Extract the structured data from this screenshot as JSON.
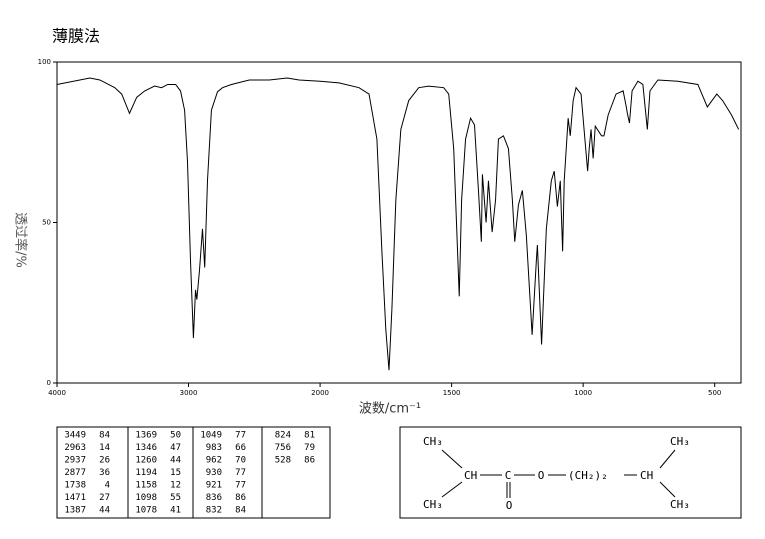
{
  "chart_data": {
    "type": "line",
    "title": "薄膜法",
    "x_label": "波数/cm⁻¹",
    "y_label": "透过率/%",
    "color": "#000000",
    "xlim": [
      4000,
      400
    ],
    "ylim": [
      0,
      100
    ],
    "x_axis_break": {
      "at": 2000,
      "expansion": 2
    },
    "xticks": [
      4000,
      3000,
      2000,
      1500,
      1000,
      500
    ],
    "yticks": [
      0,
      50,
      100
    ],
    "x": [
      4000,
      3750,
      3674,
      3561,
      3508,
      3449,
      3394,
      3333,
      3258,
      3205,
      3159,
      3098,
      3061,
      3030,
      3008,
      2985,
      2963,
      2947,
      2937,
      2917,
      2894,
      2877,
      2856,
      2826,
      2780,
      2742,
      2674,
      2538,
      2386,
      2250,
      2159,
      2000,
      1928,
      1852,
      1814,
      1784,
      1765,
      1750,
      1738,
      1727,
      1712,
      1693,
      1663,
      1625,
      1587,
      1530,
      1511,
      1492,
      1471,
      1462,
      1447,
      1428,
      1413,
      1398,
      1387,
      1383,
      1369,
      1360,
      1346,
      1333,
      1322,
      1303,
      1284,
      1269,
      1260,
      1246,
      1231,
      1216,
      1194,
      1178,
      1174,
      1158,
      1140,
      1121,
      1110,
      1098,
      1087,
      1078,
      1072,
      1057,
      1049,
      1038,
      1027,
      1008,
      983,
      977,
      970,
      962,
      954,
      930,
      921,
      905,
      875,
      848,
      836,
      832,
      824,
      814,
      792,
      773,
      756,
      746,
      716,
      640,
      564,
      528,
      492,
      470,
      436,
      409
    ],
    "values": [
      93,
      95,
      94.4,
      92,
      90,
      84,
      89,
      91,
      92.5,
      92,
      93,
      93,
      91,
      85,
      69,
      38,
      14,
      29,
      26,
      35,
      48,
      36,
      63,
      85,
      90.7,
      92,
      93,
      94.4,
      94.4,
      95,
      94.4,
      94,
      93.5,
      92,
      90,
      76,
      41,
      16.5,
      4,
      23,
      57,
      79,
      88,
      92,
      92.5,
      92,
      90,
      73,
      27,
      57,
      76,
      82.5,
      80.4,
      60,
      44,
      65,
      50,
      63,
      47,
      57,
      76,
      77,
      73,
      57,
      44,
      55.5,
      60,
      46,
      15,
      38,
      43,
      12,
      48,
      63,
      66,
      55,
      63,
      41,
      63,
      82.5,
      77,
      88,
      92,
      90,
      66,
      73,
      79,
      70,
      80,
      77,
      77,
      83.5,
      90,
      91,
      86,
      84,
      81,
      91,
      94,
      93,
      79,
      91,
      94.4,
      94,
      93,
      86,
      90,
      88,
      83.5,
      79
    ]
  },
  "peak_table": {
    "rows": [
      [
        3449,
        84
      ],
      [
        2963,
        14
      ],
      [
        2937,
        26
      ],
      [
        2877,
        36
      ],
      [
        1738,
        4
      ],
      [
        1471,
        27
      ],
      [
        1387,
        44
      ],
      [
        1369,
        50
      ],
      [
        1346,
        47
      ],
      [
        1260,
        44
      ],
      [
        1194,
        15
      ],
      [
        1158,
        12
      ],
      [
        1098,
        55
      ],
      [
        1078,
        41
      ],
      [
        1049,
        77
      ],
      [
        983,
        66
      ],
      [
        962,
        70
      ],
      [
        930,
        77
      ],
      [
        921,
        77
      ],
      [
        836,
        86
      ],
      [
        832,
        84
      ],
      [
        824,
        81
      ],
      [
        756,
        79
      ],
      [
        528,
        86
      ]
    ]
  },
  "structure": {
    "groups": [
      "CH₃",
      "CH",
      "C",
      "O",
      "O",
      "(CH₂)₂",
      "CH",
      "CH₃",
      "CH₃",
      "CH₃"
    ]
  }
}
